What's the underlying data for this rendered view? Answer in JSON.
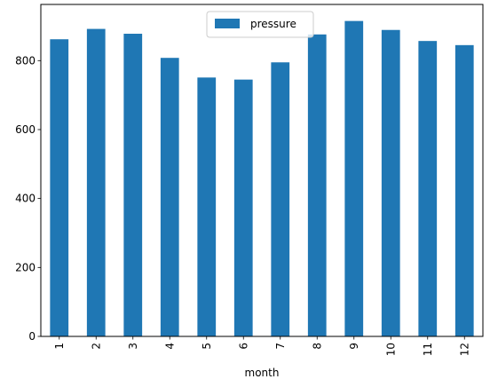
{
  "chart_data": {
    "type": "bar",
    "categories": [
      "1",
      "2",
      "3",
      "4",
      "5",
      "6",
      "7",
      "8",
      "9",
      "10",
      "11",
      "12"
    ],
    "series": [
      {
        "name": "pressure",
        "values": [
          862,
          892,
          878,
          808,
          751,
          745,
          795,
          876,
          915,
          889,
          857,
          845
        ],
        "color": "#1f77b4"
      }
    ],
    "title": "",
    "xlabel": "month",
    "ylabel": "",
    "ylim": [
      0,
      963
    ],
    "yticks": [
      0,
      200,
      400,
      600,
      800
    ],
    "grid": false,
    "legend_position": "top-center",
    "x_tick_rotation": "vertical"
  }
}
